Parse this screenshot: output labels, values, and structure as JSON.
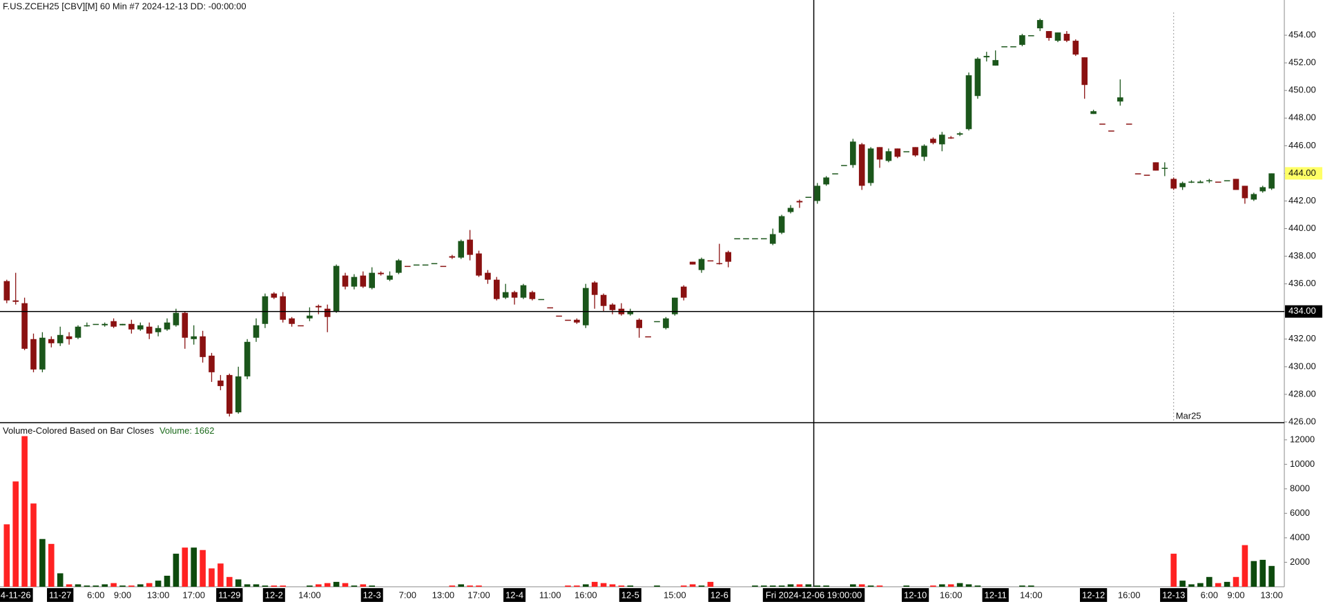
{
  "chart_data": {
    "type": "candlestick",
    "title": "F.US.ZCEH25 [CBV][M]  60 Min  #7 2024-12-13 DD: -00:00:00",
    "categories": [
      null,
      "4-11-26",
      null,
      null,
      null,
      null,
      "11-27",
      null,
      null,
      null,
      "6:00",
      null,
      null,
      "9:00",
      null,
      null,
      null,
      "13:00",
      null,
      null,
      null,
      "17:00",
      null,
      null,
      null,
      "11-29",
      null,
      null,
      null,
      null,
      "12-2",
      null,
      null,
      null,
      "14:00",
      null,
      null,
      null,
      null,
      null,
      null,
      "12-3",
      null,
      null,
      null,
      "7:00",
      null,
      null,
      null,
      "13:00",
      null,
      null,
      null,
      "17:00",
      null,
      null,
      null,
      "12-4",
      null,
      null,
      null,
      "11:00",
      null,
      null,
      null,
      "16:00",
      null,
      null,
      null,
      null,
      "12-5",
      null,
      null,
      null,
      null,
      "15:00",
      null,
      null,
      null,
      null,
      "12-6",
      null,
      null,
      null,
      null,
      null,
      null,
      null,
      null,
      null,
      null,
      null,
      null,
      null,
      null,
      null,
      null,
      null,
      null,
      null,
      null,
      null,
      "12-10",
      null,
      null,
      null,
      "16:00",
      null,
      null,
      null,
      null,
      "12-11",
      null,
      null,
      null,
      "14:00",
      null,
      null,
      null,
      null,
      null,
      null,
      "12-12",
      null,
      null,
      null,
      "16:00",
      null,
      null,
      null,
      null,
      "12-13",
      null,
      null,
      null,
      "6:00",
      null,
      null,
      "9:00",
      null,
      null,
      null,
      "13:00"
    ],
    "ohlc": [
      [
        436.2,
        436.3,
        434.6,
        434.8
      ],
      [
        434.8,
        436.8,
        434.5,
        434.7
      ],
      [
        434.6,
        435.0,
        431.2,
        431.3
      ],
      [
        432.0,
        432.4,
        429.6,
        429.8
      ],
      [
        429.8,
        432.5,
        429.6,
        432.1
      ],
      [
        432.0,
        432.2,
        431.4,
        431.7
      ],
      [
        431.7,
        432.9,
        431.5,
        432.3
      ],
      [
        432.2,
        432.5,
        431.6,
        432.0
      ],
      [
        432.1,
        433.0,
        432.0,
        432.9
      ],
      [
        433.0,
        433.2,
        432.9,
        433.0
      ],
      [
        433.1,
        433.1,
        433.1,
        433.1
      ],
      [
        433.0,
        433.2,
        432.9,
        433.1
      ],
      [
        433.3,
        433.5,
        432.8,
        432.9
      ],
      [
        433.0,
        433.1,
        433.0,
        433.1
      ],
      [
        433.1,
        433.4,
        432.4,
        432.7
      ],
      [
        432.7,
        433.2,
        432.6,
        433.0
      ],
      [
        432.9,
        433.2,
        432.0,
        432.4
      ],
      [
        432.5,
        433.0,
        432.2,
        432.8
      ],
      [
        432.7,
        433.5,
        432.6,
        433.2
      ],
      [
        433.0,
        434.2,
        432.9,
        433.9
      ],
      [
        433.9,
        434.0,
        431.3,
        432.1
      ],
      [
        432.0,
        433.0,
        431.6,
        432.2
      ],
      [
        432.2,
        432.6,
        430.3,
        430.7
      ],
      [
        430.8,
        431.0,
        428.9,
        429.6
      ],
      [
        429.0,
        429.4,
        428.3,
        428.6
      ],
      [
        429.4,
        429.5,
        426.4,
        426.6
      ],
      [
        426.7,
        430.0,
        426.6,
        429.3
      ],
      [
        429.3,
        432.0,
        429.1,
        431.8
      ],
      [
        432.1,
        433.5,
        431.8,
        433.0
      ],
      [
        433.1,
        435.3,
        432.8,
        435.1
      ],
      [
        435.3,
        435.4,
        434.9,
        435.0
      ],
      [
        435.1,
        435.4,
        433.2,
        433.4
      ],
      [
        433.5,
        433.6,
        432.9,
        433.1
      ],
      [
        433.0,
        433.0,
        433.0,
        433.0
      ],
      [
        433.5,
        434.3,
        433.3,
        433.7
      ],
      [
        434.4,
        434.5,
        433.8,
        434.3
      ],
      [
        434.2,
        434.5,
        432.5,
        433.6
      ],
      [
        434.0,
        437.4,
        433.9,
        437.3
      ],
      [
        436.6,
        436.8,
        435.6,
        435.8
      ],
      [
        435.8,
        436.7,
        435.6,
        436.5
      ],
      [
        436.6,
        436.9,
        435.7,
        435.8
      ],
      [
        435.7,
        437.2,
        435.6,
        436.8
      ],
      [
        436.8,
        436.9,
        436.6,
        436.7
      ],
      [
        436.3,
        436.9,
        436.2,
        436.6
      ],
      [
        436.8,
        437.8,
        436.7,
        437.7
      ],
      [
        437.3,
        437.3,
        437.3,
        437.3
      ],
      [
        437.4,
        437.4,
        437.4,
        437.4
      ],
      [
        437.4,
        437.4,
        437.4,
        437.4
      ],
      [
        437.5,
        437.5,
        437.5,
        437.5
      ],
      [
        437.3,
        437.3,
        437.3,
        437.3
      ],
      [
        438.0,
        438.1,
        437.8,
        437.9
      ],
      [
        437.9,
        439.2,
        437.8,
        439.1
      ],
      [
        439.2,
        439.9,
        437.7,
        438.1
      ],
      [
        438.2,
        438.4,
        436.5,
        436.6
      ],
      [
        436.8,
        437.0,
        436.0,
        436.3
      ],
      [
        436.3,
        436.5,
        434.8,
        434.9
      ],
      [
        435.0,
        436.0,
        434.9,
        435.4
      ],
      [
        435.4,
        435.5,
        434.5,
        435.0
      ],
      [
        435.0,
        436.0,
        434.9,
        435.9
      ],
      [
        435.4,
        435.5,
        434.8,
        434.9
      ],
      [
        434.9,
        434.9,
        434.9,
        434.9
      ],
      [
        434.3,
        434.3,
        434.3,
        434.3
      ],
      [
        433.7,
        433.7,
        433.7,
        433.7
      ],
      [
        433.4,
        433.4,
        433.4,
        433.4
      ],
      [
        433.4,
        433.5,
        433.1,
        433.2
      ],
      [
        433.0,
        436.0,
        432.8,
        435.7
      ],
      [
        436.1,
        436.2,
        434.2,
        435.2
      ],
      [
        435.2,
        435.3,
        434.0,
        434.4
      ],
      [
        434.5,
        434.6,
        433.8,
        434.1
      ],
      [
        434.2,
        434.6,
        433.7,
        433.8
      ],
      [
        433.8,
        434.2,
        433.7,
        434.0
      ],
      [
        433.4,
        433.5,
        432.1,
        432.8
      ],
      [
        432.2,
        432.2,
        432.2,
        432.2
      ],
      [
        433.3,
        433.3,
        433.3,
        433.3
      ],
      [
        432.8,
        433.6,
        432.7,
        433.5
      ],
      [
        433.8,
        435.0,
        433.7,
        435.0
      ],
      [
        435.8,
        435.9,
        434.8,
        435.0
      ],
      [
        437.6,
        437.6,
        437.4,
        437.4
      ],
      [
        437.0,
        437.9,
        436.8,
        437.8
      ],
      [
        437.7,
        437.7,
        437.7,
        437.7
      ],
      [
        437.5,
        438.9,
        437.4,
        437.5
      ],
      [
        438.3,
        438.4,
        437.2,
        437.6
      ],
      [
        439.3,
        439.3,
        439.3,
        439.3
      ],
      [
        439.3,
        439.3,
        439.3,
        439.3
      ],
      [
        439.3,
        439.3,
        439.3,
        439.3
      ],
      [
        439.3,
        439.3,
        439.3,
        439.3
      ],
      [
        438.9,
        440.0,
        438.8,
        439.6
      ],
      [
        439.7,
        441.0,
        439.6,
        440.9
      ],
      [
        441.2,
        441.7,
        441.1,
        441.5
      ],
      [
        442.0,
        442.1,
        441.5,
        441.9
      ],
      [
        442.3,
        442.3,
        442.3,
        442.3
      ],
      [
        442.0,
        443.3,
        441.8,
        443.1
      ],
      [
        443.2,
        443.8,
        443.1,
        443.7
      ],
      [
        444.0,
        444.0,
        444.0,
        444.0
      ],
      [
        444.6,
        444.6,
        444.6,
        444.6
      ],
      [
        444.6,
        446.5,
        444.4,
        446.3
      ],
      [
        446.1,
        446.2,
        442.8,
        443.1
      ],
      [
        443.3,
        445.9,
        443.1,
        445.8
      ],
      [
        445.9,
        445.9,
        444.4,
        445.0
      ],
      [
        444.9,
        445.8,
        444.8,
        445.6
      ],
      [
        445.8,
        445.8,
        445.1,
        445.2
      ],
      [
        445.6,
        445.6,
        445.6,
        445.6
      ],
      [
        445.9,
        445.9,
        445.2,
        445.3
      ],
      [
        445.2,
        446.1,
        444.9,
        446.0
      ],
      [
        446.5,
        446.6,
        446.1,
        446.2
      ],
      [
        446.1,
        447.0,
        445.6,
        446.8
      ],
      [
        446.6,
        446.7,
        446.5,
        446.6
      ],
      [
        446.8,
        447.0,
        446.7,
        446.9
      ],
      [
        447.2,
        451.3,
        447.1,
        451.1
      ],
      [
        449.6,
        452.4,
        449.4,
        452.3
      ],
      [
        452.4,
        452.8,
        452.1,
        452.5
      ],
      [
        451.8,
        452.9,
        451.8,
        452.2
      ],
      [
        453.2,
        453.2,
        453.2,
        453.2
      ],
      [
        453.2,
        453.2,
        453.2,
        453.2
      ],
      [
        453.3,
        454.1,
        453.2,
        454.0
      ],
      [
        454.0,
        454.0,
        454.0,
        454.0
      ],
      [
        454.5,
        455.2,
        454.3,
        455.1
      ],
      [
        454.3,
        454.3,
        453.6,
        453.8
      ],
      [
        453.6,
        454.2,
        453.5,
        454.2
      ],
      [
        454.1,
        454.3,
        453.5,
        453.6
      ],
      [
        453.6,
        453.7,
        452.5,
        452.6
      ],
      [
        452.4,
        452.4,
        449.4,
        450.4
      ],
      [
        448.3,
        448.6,
        448.3,
        448.5
      ],
      [
        447.6,
        447.6,
        447.6,
        447.6
      ],
      [
        447.1,
        447.1,
        447.1,
        447.1
      ],
      [
        449.2,
        450.8,
        448.9,
        449.5
      ],
      [
        447.6,
        447.6,
        447.6,
        447.6
      ],
      [
        444.0,
        444.0,
        444.0,
        444.0
      ],
      [
        443.9,
        443.9,
        443.9,
        443.9
      ],
      [
        444.8,
        444.8,
        444.2,
        444.2
      ],
      [
        444.4,
        444.8,
        443.8,
        444.4
      ],
      [
        443.6,
        443.7,
        442.8,
        442.9
      ],
      [
        443.0,
        443.4,
        442.8,
        443.3
      ],
      [
        443.4,
        443.5,
        443.3,
        443.4
      ],
      [
        443.3,
        443.5,
        443.3,
        443.4
      ],
      [
        443.5,
        443.6,
        443.3,
        443.5
      ],
      [
        443.4,
        443.4,
        443.4,
        443.4
      ],
      [
        443.5,
        443.5,
        443.5,
        443.5
      ],
      [
        443.6,
        443.6,
        442.8,
        442.8
      ],
      [
        443.1,
        443.1,
        441.8,
        442.2
      ],
      [
        442.1,
        442.6,
        442.0,
        442.5
      ],
      [
        442.7,
        443.1,
        442.6,
        443.0
      ],
      [
        442.9,
        444.0,
        442.8,
        444.0
      ]
    ],
    "up_color": "#1b561b",
    "down_color": "#8a1111",
    "ylim": [
      425.95,
      456.55
    ],
    "yticks": [
      {
        "value": 426,
        "label": "426.00"
      },
      {
        "value": 428,
        "label": "428.00"
      },
      {
        "value": 430,
        "label": "430.00"
      },
      {
        "value": 432,
        "label": "432.00"
      },
      {
        "value": 434,
        "label": "434.00"
      },
      {
        "value": 436,
        "label": "436.00"
      },
      {
        "value": 438,
        "label": "438.00"
      },
      {
        "value": 440,
        "label": "440.00"
      },
      {
        "value": 442,
        "label": "442.00"
      },
      {
        "value": 444,
        "label": "444.00"
      },
      {
        "value": 446,
        "label": "446.00"
      },
      {
        "value": 448,
        "label": "448.00"
      },
      {
        "value": 450,
        "label": "450.00"
      },
      {
        "value": 452,
        "label": "452.00"
      },
      {
        "value": 454,
        "label": "454.00"
      }
    ],
    "crosshair": {
      "x": 90.6,
      "y": 434,
      "label": "Fri 2024-12-06 19:00:00"
    },
    "marker": {
      "x": 131,
      "label": "Mar25"
    },
    "volume": {
      "type": "bar",
      "title": "Volume-Colored Based on Bar Closes",
      "readout": "Volume: 1662",
      "values": [
        5100,
        8600,
        12300,
        6800,
        3900,
        3500,
        1100,
        200,
        200,
        100,
        100,
        200,
        300,
        100,
        100,
        200,
        300,
        500,
        900,
        2700,
        3200,
        3200,
        3000,
        1500,
        1900,
        800,
        600,
        200,
        200,
        100,
        100,
        100,
        0,
        0,
        100,
        200,
        300,
        400,
        300,
        100,
        200,
        100,
        0,
        0,
        0,
        0,
        0,
        0,
        0,
        0,
        100,
        200,
        100,
        100,
        0,
        0,
        0,
        0,
        0,
        0,
        0,
        0,
        0,
        100,
        100,
        200,
        400,
        300,
        200,
        100,
        100,
        0,
        0,
        100,
        0,
        0,
        100,
        200,
        100,
        400,
        0,
        0,
        0,
        0,
        100,
        100,
        100,
        100,
        200,
        200,
        200,
        100,
        100,
        0,
        0,
        200,
        200,
        100,
        100,
        0,
        0,
        100,
        0,
        0,
        100,
        200,
        200,
        300,
        200,
        100,
        0,
        0,
        0,
        0,
        100,
        100,
        0,
        0,
        0,
        0,
        0,
        0,
        0,
        0,
        0,
        0,
        0,
        0,
        0,
        0,
        0,
        2700,
        500,
        200,
        300,
        800,
        300,
        400,
        800,
        3400,
        2100,
        2200,
        1700
      ],
      "up_color": "#0d4a0d",
      "down_color": "#ff2222",
      "readout_color": "#1b6a1b",
      "ylim": [
        0,
        13400
      ],
      "yticks": [
        2000,
        4000,
        6000,
        8000,
        10000,
        12000
      ]
    }
  }
}
